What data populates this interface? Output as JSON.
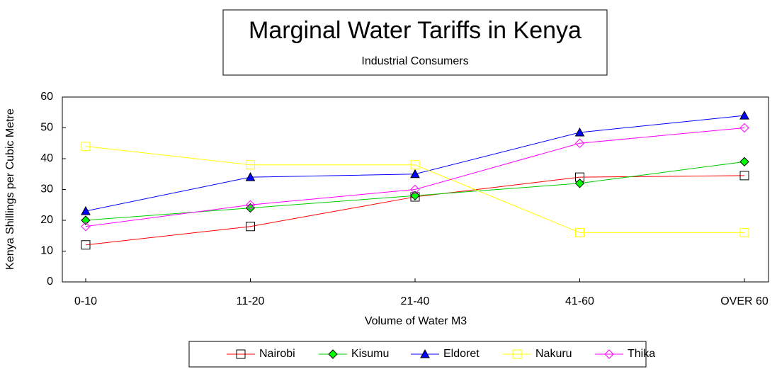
{
  "chart_data": {
    "type": "line",
    "title": "Marginal Water Tariffs in Kenya",
    "subtitle": "Industrial Consumers",
    "x_label": "Volume of Water M3",
    "y_label": "Kenya Shillings per Cubic Metre",
    "categories": [
      "0-10",
      "11-20",
      "21-40",
      "41-60",
      "OVER 60"
    ],
    "ylim": [
      0,
      60
    ],
    "yticks": [
      0,
      10,
      20,
      30,
      40,
      50,
      60
    ],
    "grid": false,
    "legend": "bottom",
    "series": [
      {
        "name": "Nairobi",
        "color": "#ff0000",
        "marker": "square",
        "marker_fill": "none",
        "marker_stroke": "#000000",
        "values": [
          12,
          18,
          27.6,
          34,
          34.5
        ]
      },
      {
        "name": "Kisumu",
        "color": "#00cc00",
        "marker": "diamond",
        "marker_fill": "#00ff00",
        "marker_stroke": "#000000",
        "values": [
          20,
          24,
          28,
          32,
          39
        ]
      },
      {
        "name": "Eldoret",
        "color": "#0000ff",
        "marker": "triangle",
        "marker_fill": "#0000ff",
        "marker_stroke": "#000000",
        "values": [
          23,
          34,
          35,
          48.5,
          54
        ]
      },
      {
        "name": "Nakuru",
        "color": "#ffff00",
        "marker": "square",
        "marker_fill": "none",
        "marker_stroke": "#ffff00",
        "values": [
          44,
          38,
          38,
          16,
          16
        ]
      },
      {
        "name": "Thika",
        "color": "#ff00ff",
        "marker": "diamond",
        "marker_fill": "none",
        "marker_stroke": "#ff00ff",
        "values": [
          18,
          25,
          30,
          45,
          50
        ]
      }
    ]
  }
}
